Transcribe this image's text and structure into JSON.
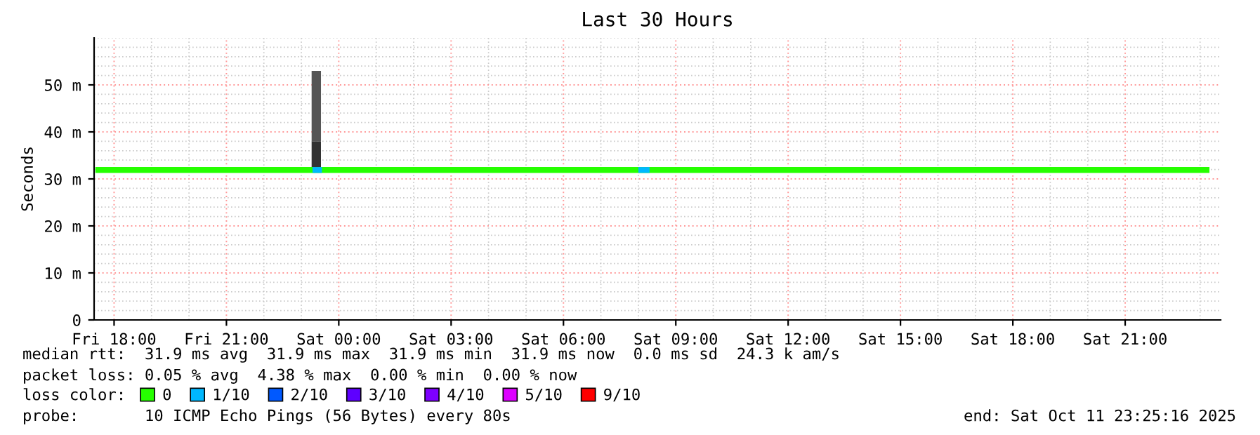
{
  "chart_data": {
    "type": "line",
    "title": "Last 30 Hours",
    "ylabel": "Seconds",
    "xlim": [
      "2025-10-10T17:28",
      "2025-10-11T23:33"
    ],
    "xticks": [
      {
        "value": "2025-10-10T18:00",
        "label": "Fri 18:00"
      },
      {
        "value": "2025-10-10T21:00",
        "label": "Fri 21:00"
      },
      {
        "value": "2025-10-11T00:00",
        "label": "Sat 00:00"
      },
      {
        "value": "2025-10-11T03:00",
        "label": "Sat 03:00"
      },
      {
        "value": "2025-10-11T06:00",
        "label": "Sat 06:00"
      },
      {
        "value": "2025-10-11T09:00",
        "label": "Sat 09:00"
      },
      {
        "value": "2025-10-11T12:00",
        "label": "Sat 12:00"
      },
      {
        "value": "2025-10-11T15:00",
        "label": "Sat 15:00"
      },
      {
        "value": "2025-10-11T18:00",
        "label": "Sat 18:00"
      },
      {
        "value": "2025-10-11T21:00",
        "label": "Sat 21:00"
      }
    ],
    "ylim": [
      0,
      60
    ],
    "yticks": [
      0,
      {
        "value": 10,
        "label": "10 m"
      },
      {
        "value": 20,
        "label": "20 m"
      },
      {
        "value": 30,
        "label": "30 m"
      },
      {
        "value": 40,
        "label": "40 m"
      },
      {
        "value": 50,
        "label": "50 m"
      }
    ],
    "grid": true,
    "legend": "bottom",
    "legend_title": "loss color:",
    "series": [
      {
        "type": "bar",
        "color": "#333333",
        "x": [
          "2025-10-10T23:24"
        ],
        "base": [
          31.9
        ],
        "values": [
          6.1
        ]
      },
      {
        "type": "bar",
        "color": "#555555",
        "x": [
          "2025-10-10T23:24"
        ],
        "base": [
          38
        ],
        "values": [
          15
        ]
      },
      {
        "name": "0",
        "color": "#26ff00",
        "x": [
          "2025-10-10T17:30",
          "2025-10-11T23:15"
        ],
        "values": [
          31.9,
          31.9
        ]
      },
      {
        "name": "1/10",
        "color": "#00b8ff",
        "x": [
          "2025-10-10T23:18",
          "2025-10-10T23:33"
        ],
        "values": [
          31.9,
          31.9
        ]
      },
      {
        "color": "#00b8ff",
        "x": [
          "2025-10-11T08:00",
          "2025-10-11T08:18"
        ],
        "values": [
          31.9,
          31.9
        ]
      },
      {
        "name": "2/10",
        "color": "#0059ff"
      },
      {
        "name": "3/10",
        "color": "#5e00ff"
      },
      {
        "name": "4/10",
        "color": "#7e00ff"
      },
      {
        "name": "5/10",
        "color": "#dd00ff"
      },
      {
        "name": "9/10",
        "color": "#ff0000"
      }
    ],
    "annotations": [
      "median rtt:  31.9 ms avg  31.9 ms max  31.9 ms min  31.9 ms now  0.0 ms sd  24.3 k am/s",
      "packet loss: 0.05 % avg  4.38 % max  0.00 % min  0.00 % now",
      "probe:       10 ICMP Echo Pings (56 Bytes) every 80s",
      "end: Sat Oct 11 23:25:16 2025"
    ]
  }
}
